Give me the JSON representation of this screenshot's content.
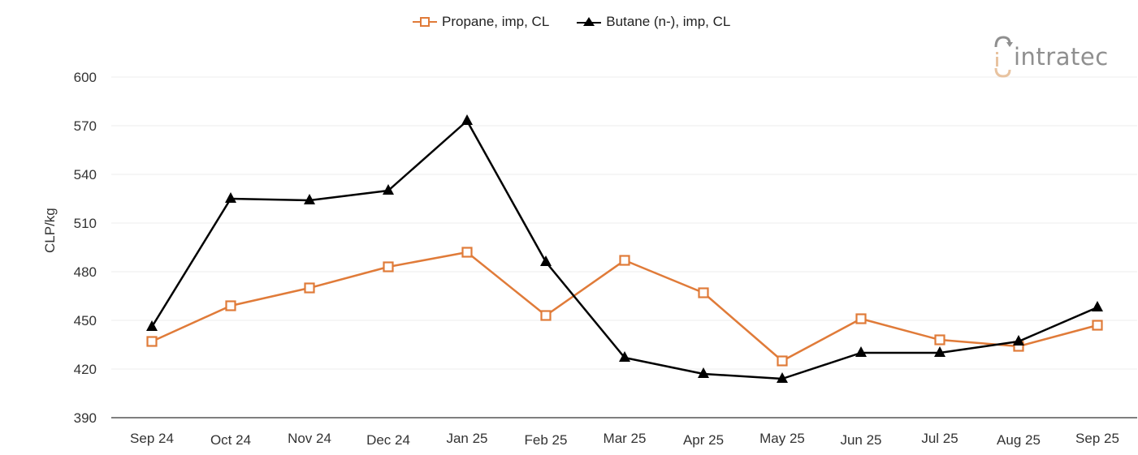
{
  "legend": {
    "propane_label": "Propane, imp, CL",
    "butane_label": "Butane (n-), imp, CL"
  },
  "logo": {
    "text": "intratec",
    "accent_color": "#e8c3a0",
    "text_color": "#8f8f8f"
  },
  "axis": {
    "ylabel": "CLP/kg"
  },
  "colors": {
    "propane": "#e07b39",
    "butane": "#000000",
    "grid": "#ececec",
    "axis": "#555555"
  },
  "chart_data": {
    "type": "line",
    "title": "",
    "xlabel": "",
    "ylabel": "CLP/kg",
    "ylim": [
      390,
      600
    ],
    "yticks": [
      390,
      420,
      450,
      480,
      510,
      540,
      570,
      600
    ],
    "grid": true,
    "legend_position": "top",
    "categories": [
      "Sep 24",
      "Oct 24",
      "Nov 24",
      "Dec 24",
      "Jan 25",
      "Feb 25",
      "Mar 25",
      "Apr 25",
      "May 25",
      "Jun 25",
      "Jul 25",
      "Aug 25",
      "Sep 25"
    ],
    "series": [
      {
        "name": "Propane, imp, CL",
        "marker": "open-square",
        "color": "#e07b39",
        "values": [
          437,
          459,
          470,
          483,
          492,
          453,
          487,
          467,
          425,
          451,
          438,
          434,
          447
        ]
      },
      {
        "name": "Butane (n-), imp, CL",
        "marker": "filled-triangle",
        "color": "#000000",
        "values": [
          446,
          525,
          524,
          530,
          573,
          486,
          427,
          417,
          414,
          430,
          430,
          437,
          458
        ]
      }
    ]
  }
}
